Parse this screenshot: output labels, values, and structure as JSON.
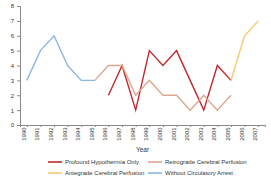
{
  "chart_data": {
    "type": "line",
    "x_label": "Year",
    "categories": [
      "1990",
      "1991",
      "1992",
      "1993",
      "1994",
      "1995",
      "1996",
      "1997",
      "1998",
      "1999",
      "2000",
      "2001",
      "2002",
      "2003",
      "2004",
      "2005",
      "2006",
      "2007"
    ],
    "ylim": [
      0,
      8
    ],
    "yticks": [
      0,
      1,
      2,
      3,
      4,
      5,
      6,
      7,
      8
    ],
    "series": [
      {
        "name": "Profound Hypothermia Only",
        "color": "#c0282d",
        "values": [
          null,
          null,
          null,
          null,
          null,
          null,
          2,
          4,
          1,
          5,
          4,
          5,
          3,
          1,
          4,
          3,
          null,
          null
        ]
      },
      {
        "name": "Retrograde Cerebral Perfusion",
        "color": "#d9a88f",
        "values": [
          null,
          null,
          null,
          null,
          null,
          3,
          4,
          4,
          2,
          3,
          2,
          2,
          1,
          2,
          1,
          2,
          null,
          null
        ]
      },
      {
        "name": "Antegrade Cerebral Perfusion",
        "color": "#f7c86e",
        "values": [
          null,
          null,
          null,
          null,
          null,
          null,
          null,
          null,
          null,
          null,
          null,
          null,
          null,
          null,
          null,
          3,
          6,
          7
        ]
      },
      {
        "name": "Without Circulatory Arrest",
        "color": "#8bb8e6",
        "values": [
          3,
          5,
          6,
          4,
          3,
          3,
          null,
          null,
          null,
          null,
          null,
          null,
          null,
          null,
          null,
          null,
          null,
          null
        ]
      }
    ],
    "legend": "bottom"
  }
}
